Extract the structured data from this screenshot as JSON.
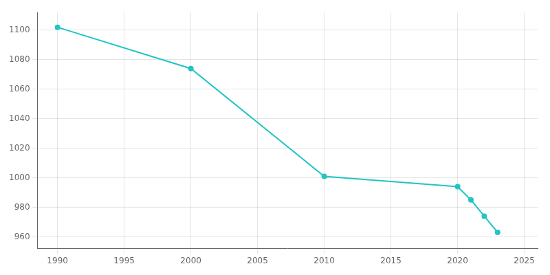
{
  "chart_data": {
    "type": "line",
    "x": [
      1990,
      2000,
      2010,
      2020,
      2021,
      2022,
      2023
    ],
    "values": [
      1102,
      1074,
      1001,
      994,
      985,
      974,
      963
    ],
    "color": "#22C4C4",
    "marker": "circle",
    "xlim": [
      1988.5,
      2026
    ],
    "ylim": [
      952,
      1112
    ],
    "xticks": [
      1990,
      1995,
      2000,
      2005,
      2010,
      2015,
      2020,
      2025
    ],
    "yticks": [
      960,
      980,
      1000,
      1020,
      1040,
      1060,
      1080,
      1100
    ],
    "grid": true
  }
}
